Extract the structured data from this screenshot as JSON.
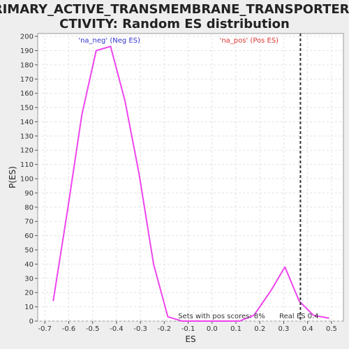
{
  "chart_data": {
    "type": "line",
    "title_line1": "PRIMARY_ACTIVE_TRANSMEMBRANE_TRANSPORTER_A",
    "title_line2": "CTIVITY: Random ES distribution",
    "xlabel": "ES",
    "ylabel": "P(ES)",
    "xlim": [
      -0.73,
      0.55
    ],
    "ylim": [
      0,
      202
    ],
    "xticks": [
      -0.7,
      -0.6,
      -0.5,
      -0.4,
      -0.3,
      -0.2,
      -0.1,
      0.0,
      0.1,
      0.2,
      0.3,
      0.4,
      0.5
    ],
    "xtick_labels": [
      "-0.7",
      "-0.6",
      "-0.5",
      "-0.4",
      "-0.3",
      "-0.2",
      "-0.1",
      "0.0",
      "0.1",
      "0.2",
      "0.3",
      "0.4",
      "0.5"
    ],
    "yticks": [
      0,
      10,
      20,
      30,
      40,
      50,
      60,
      70,
      80,
      90,
      100,
      110,
      120,
      130,
      140,
      150,
      160,
      170,
      180,
      190,
      200
    ],
    "grid": true,
    "series": [
      {
        "color": "#ee44ee",
        "x": [
          -0.665,
          -0.605,
          -0.545,
          -0.485,
          -0.425,
          -0.365,
          -0.305,
          -0.245,
          -0.185,
          -0.125,
          -0.065,
          -0.005,
          0.055,
          0.115,
          0.175,
          0.245,
          0.305,
          0.365,
          0.425,
          0.49
        ],
        "y": [
          14,
          78,
          145,
          190,
          193,
          155,
          103,
          40,
          3,
          0,
          0,
          0,
          0,
          0,
          4,
          21,
          38,
          14,
          4,
          2
        ]
      }
    ],
    "legend": {
      "neg_label": "'na_neg' (Neg ES)",
      "neg_color": "#3333cc",
      "pos_label": "'na_pos' (Pos ES)",
      "pos_color": "#dd3333"
    },
    "real_es": {
      "value": 0.37,
      "label": "Real ES 0.4"
    },
    "annotation": "Sets with pos scores: 8%"
  }
}
